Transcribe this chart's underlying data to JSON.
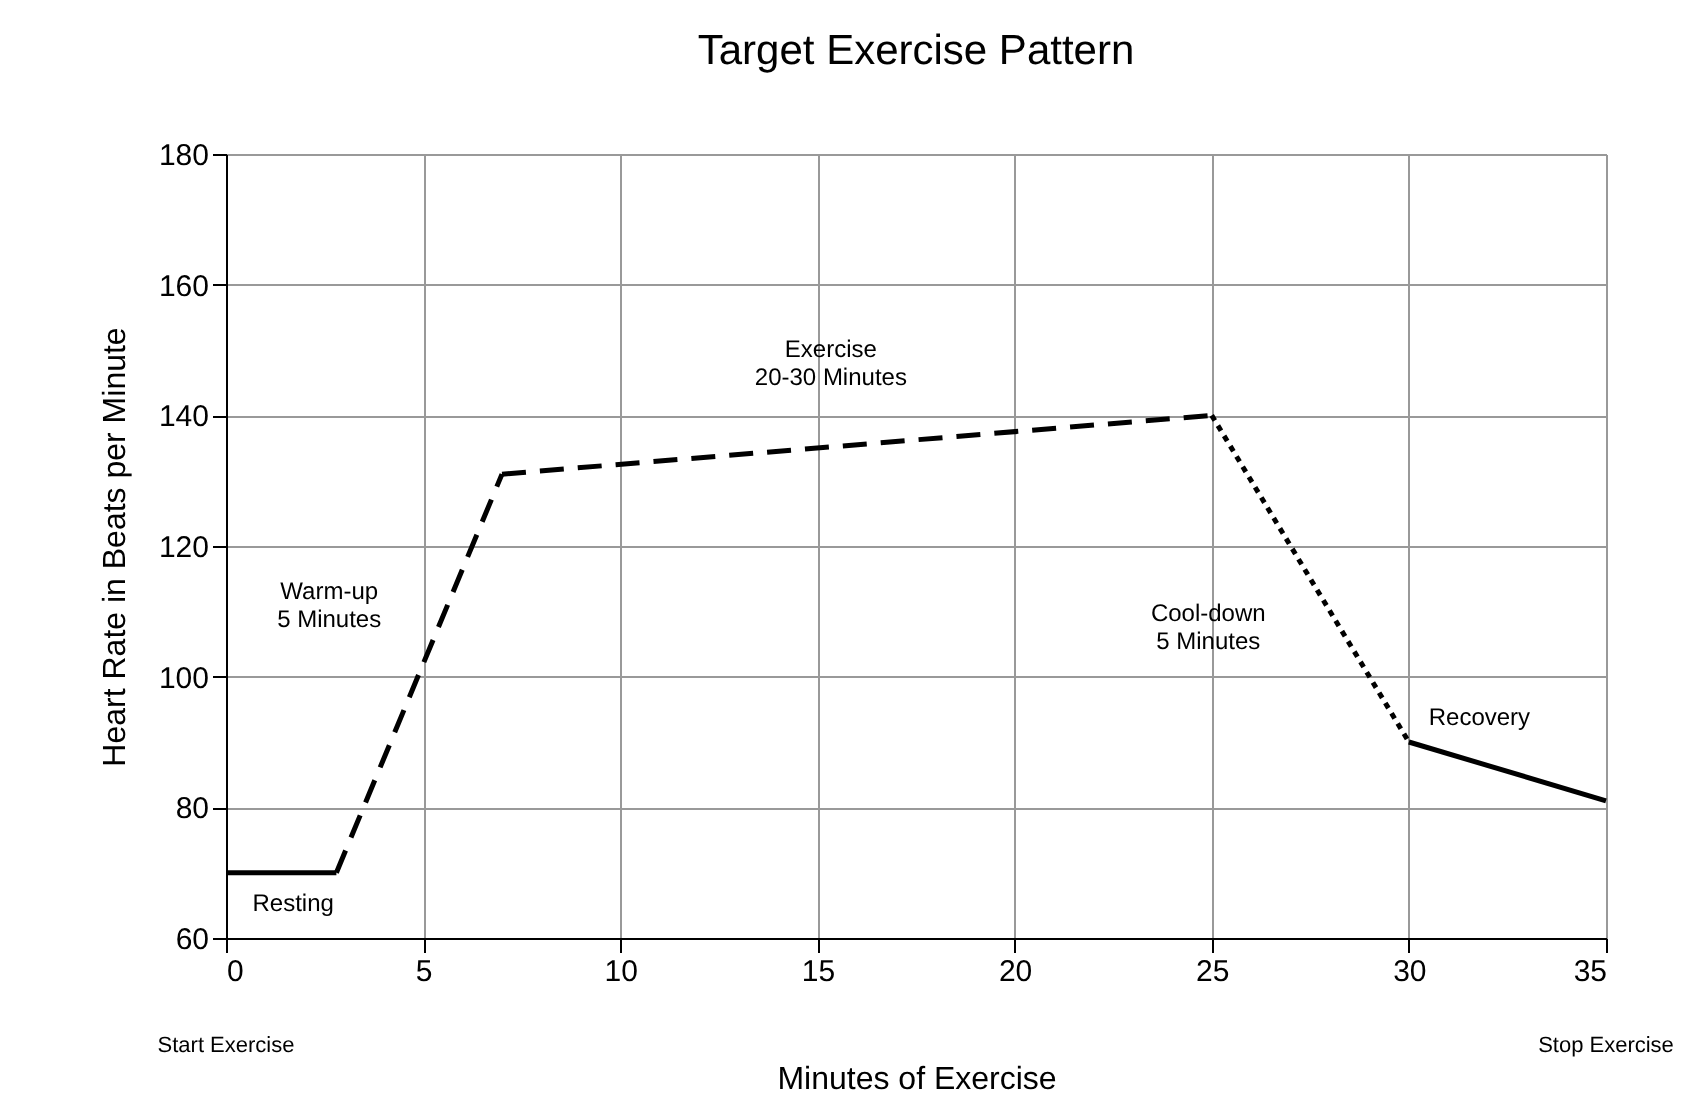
{
  "chart_data": {
    "type": "line",
    "title": "Target Exercise Pattern",
    "xlabel": "Minutes of Exercise",
    "ylabel": "Heart Rate in Beats per Minute",
    "xlim": [
      0,
      35
    ],
    "xticks": [
      0,
      5,
      10,
      15,
      20,
      25,
      30,
      35
    ],
    "ylim": [
      60,
      180
    ],
    "yticks": [
      60,
      80,
      100,
      120,
      140,
      160,
      180
    ],
    "grid": true,
    "marker": "none",
    "series": [
      {
        "name": "Resting",
        "color": "#000000",
        "line_style": "solid",
        "x": [
          0,
          2.8
        ],
        "values": [
          70,
          70
        ]
      },
      {
        "name": "Warm-up\n5 Minutes",
        "color": "#000000",
        "line_style": "dashed",
        "x": [
          2.8,
          7
        ],
        "values": [
          70,
          131
        ]
      },
      {
        "name": "Exercise\n20-30 Minutes",
        "color": "#000000",
        "line_style": "dashed",
        "x": [
          7,
          25
        ],
        "values": [
          131,
          140
        ]
      },
      {
        "name": "Cool-down\n5 Minutes",
        "color": "#000000",
        "line_style": "dotted",
        "x": [
          25,
          30
        ],
        "values": [
          140,
          90
        ]
      },
      {
        "name": "Recovery",
        "color": "#000000",
        "line_style": "solid",
        "x": [
          30,
          35
        ],
        "values": [
          90,
          81
        ]
      }
    ],
    "annotations": [
      "Start Exercise",
      "Stop Exercise"
    ]
  }
}
